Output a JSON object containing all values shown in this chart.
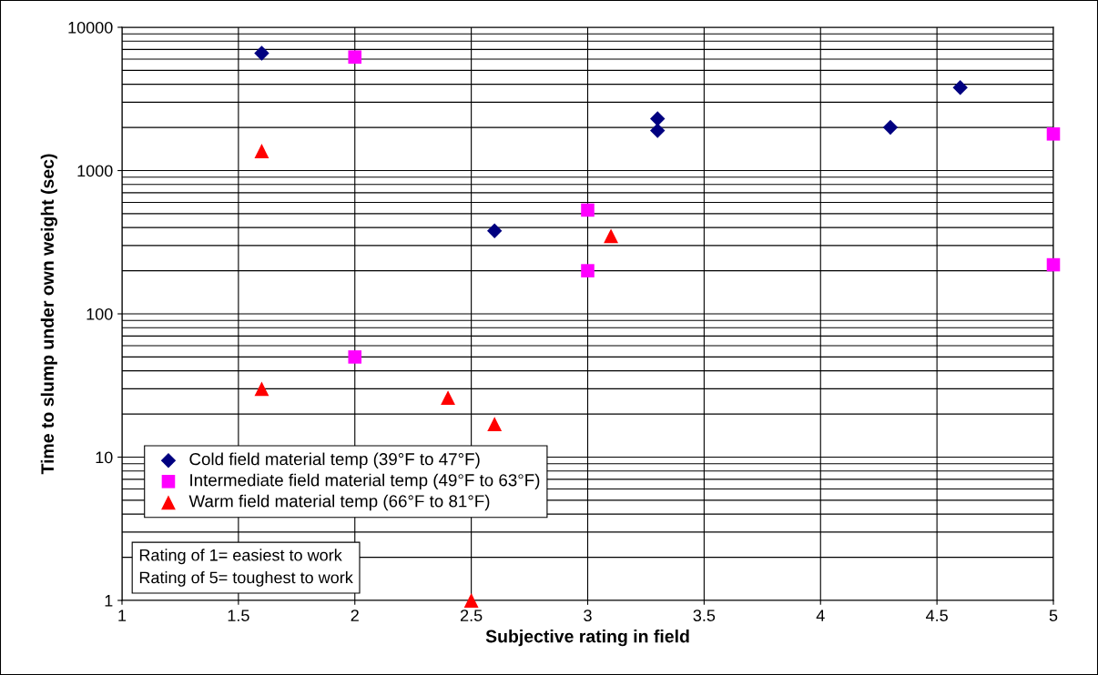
{
  "chart_data": {
    "type": "scatter",
    "xlabel": "Subjective rating in field",
    "ylabel": "Time to slump under own weight (sec)",
    "log": "y",
    "xlim": [
      1,
      5
    ],
    "ylim": [
      1,
      10000
    ],
    "xticks": [
      1,
      1.5,
      2,
      2.5,
      3,
      3.5,
      4,
      4.5,
      5
    ],
    "yticks": [
      1,
      10,
      100,
      1000,
      10000
    ],
    "grid": true,
    "legend": "bottom left",
    "series": [
      {
        "name": "Cold field material temp (39°F to 47°F)",
        "color": "#000080",
        "marker": "diamond",
        "x": [
          1.6,
          2.6,
          3.3,
          3.3,
          4.3,
          4.6
        ],
        "values": [
          6600,
          380,
          2300,
          1900,
          2000,
          3800
        ]
      },
      {
        "name": "Intermediate field material temp (49°F to 63°F)",
        "color": "#ff00ff",
        "marker": "square",
        "x": [
          2,
          3,
          3,
          2,
          5,
          5
        ],
        "values": [
          6200,
          530,
          200,
          50,
          1800,
          220
        ]
      },
      {
        "name": "Warm field material temp (66°F to 81°F)",
        "color": "#ff0000",
        "marker": "triangle",
        "x": [
          1.6,
          1.6,
          2.4,
          2.6,
          2.5,
          3.1
        ],
        "values": [
          1370,
          30,
          26,
          17,
          1,
          350
        ]
      }
    ],
    "annotations": [
      "Rating of 1= easiest to work\nRating of 5= toughest to work"
    ]
  }
}
